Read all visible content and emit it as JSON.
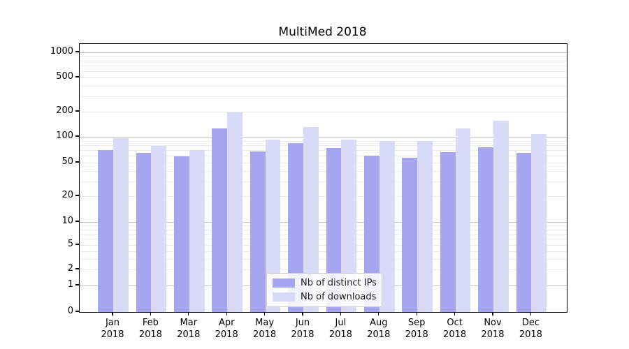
{
  "title": "MultiMed 2018",
  "chart_data": {
    "type": "bar",
    "title": "MultiMed 2018",
    "yscale": "symlog",
    "grid": true,
    "legend_position": "lower center (inside plot)",
    "y_ticks": [
      1000,
      500,
      200,
      100,
      50,
      20,
      10,
      5,
      2,
      1,
      0
    ],
    "ylim": [
      0,
      1400
    ],
    "months": [
      "Jan",
      "Feb",
      "Mar",
      "Apr",
      "May",
      "Jun",
      "Jul",
      "Aug",
      "Sep",
      "Oct",
      "Nov",
      "Dec"
    ],
    "year": "2018",
    "categories": [
      "Jan 2018",
      "Feb 2018",
      "Mar 2018",
      "Apr 2018",
      "May 2018",
      "Jun 2018",
      "Jul 2018",
      "Aug 2018",
      "Sep 2018",
      "Oct 2018",
      "Nov 2018",
      "Dec 2018"
    ],
    "series": [
      {
        "name": "Nb of distinct IPs",
        "color": "#a5a5f0",
        "values": [
          70,
          65,
          59,
          127,
          68,
          85,
          74,
          60,
          57,
          66,
          76,
          65
        ]
      },
      {
        "name": "Nb of downloads",
        "color": "#d9d9f8",
        "values": [
          96,
          78,
          70,
          195,
          92,
          130,
          93,
          90,
          90,
          127,
          155,
          108
        ]
      }
    ]
  },
  "legend": {
    "entry1": "Nb of distinct IPs",
    "entry2": "Nb of downloads"
  }
}
